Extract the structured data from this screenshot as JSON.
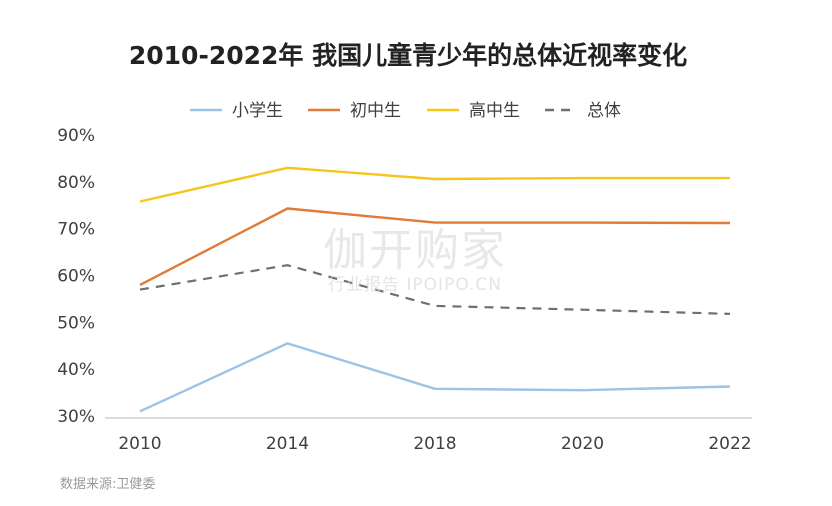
{
  "watermark": {
    "main": "伽开购家",
    "sub": "行业报告 IPOIPO.CN"
  },
  "source_note": "数据来源:卫健委",
  "chart_data": {
    "type": "line",
    "title": "2010-2022年 我国儿童青少年的总体近视率变化",
    "xlabel": "",
    "ylabel": "",
    "x": [
      "2010",
      "2014",
      "2018",
      "2020",
      "2022"
    ],
    "ylim": [
      30,
      90
    ],
    "yticks": [
      30,
      40,
      50,
      60,
      70,
      80,
      90
    ],
    "ytick_format": "{v}%",
    "grid": false,
    "legend": "top-center",
    "series": [
      {
        "name": "小学生",
        "color": "#9dc3e6",
        "dash": false,
        "values": [
          31.0,
          45.5,
          35.8,
          35.5,
          36.3
        ]
      },
      {
        "name": "初中生",
        "color": "#e07b39",
        "dash": false,
        "values": [
          58.0,
          74.3,
          71.3,
          71.3,
          71.2
        ]
      },
      {
        "name": "高中生",
        "color": "#f5c518",
        "dash": false,
        "values": [
          75.8,
          83.0,
          80.6,
          80.8,
          80.8
        ]
      },
      {
        "name": "总体",
        "color": "#707070",
        "dash": true,
        "values": [
          57.0,
          62.2,
          53.5,
          52.7,
          51.8
        ]
      }
    ]
  }
}
